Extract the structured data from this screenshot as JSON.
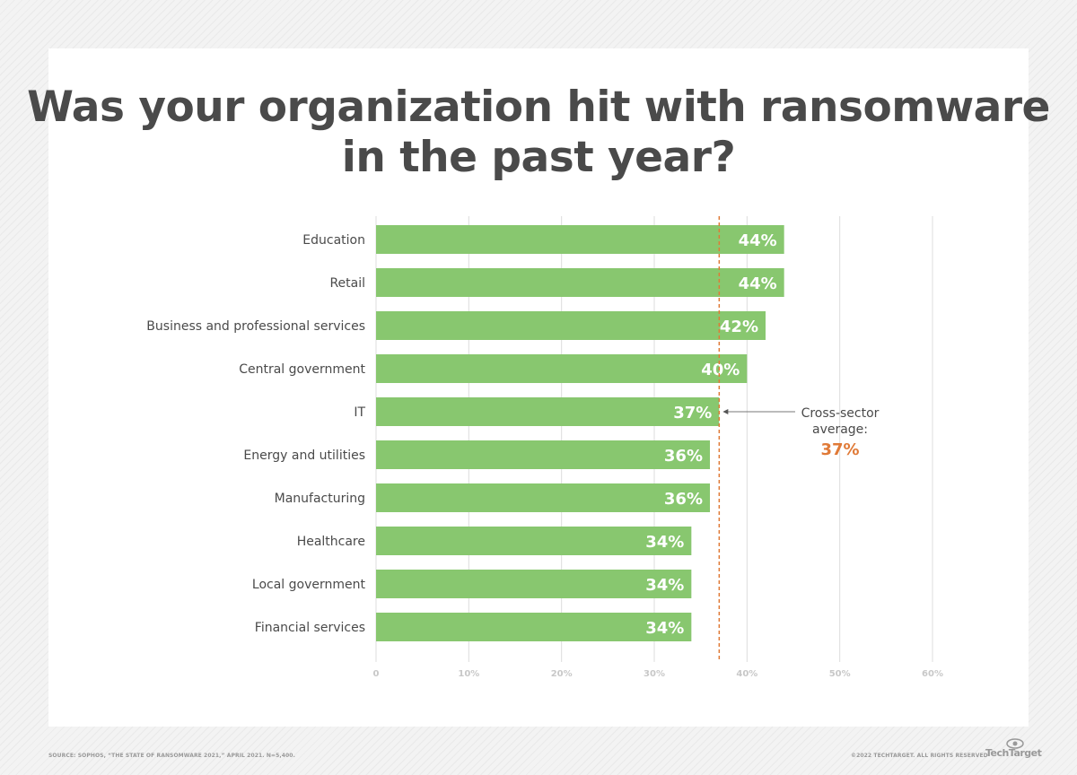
{
  "chart_data": {
    "type": "bar",
    "orientation": "horizontal",
    "title": "Was your organization hit with ransomware in the past year?",
    "categories": [
      "Education",
      "Retail",
      "Business and professional services",
      "Central government",
      "IT",
      "Energy and utilities",
      "Manufacturing",
      "Healthcare",
      "Local government",
      "Financial services"
    ],
    "values": [
      44,
      44,
      42,
      40,
      37,
      36,
      36,
      34,
      34,
      34
    ],
    "value_labels": [
      "44%",
      "44%",
      "42%",
      "40%",
      "37%",
      "36%",
      "36%",
      "34%",
      "34%",
      "34%"
    ],
    "xlim": [
      0,
      60
    ],
    "x_ticks": [
      0,
      10,
      20,
      30,
      40,
      50,
      60
    ],
    "x_tick_labels": [
      "0",
      "10%",
      "20%",
      "30%",
      "40%",
      "50%",
      "60%"
    ],
    "grid": true,
    "reference_line": {
      "value": 37,
      "label_line1": "Cross-sector",
      "label_line2": "average:",
      "value_label": "37%"
    },
    "colors": {
      "bar": "#88c76f",
      "reference": "#e07a37",
      "text": "#4a4a4a",
      "grid": "#dcdcdc"
    }
  },
  "footer": {
    "source": "SOURCE: SOPHOS, “THE STATE OF RANSOMWARE 2021,” APRIL 2021. N=5,400.",
    "copyright": "©2022 TECHTARGET. ALL RIGHTS RESERVED",
    "logo": "TechTarget"
  }
}
